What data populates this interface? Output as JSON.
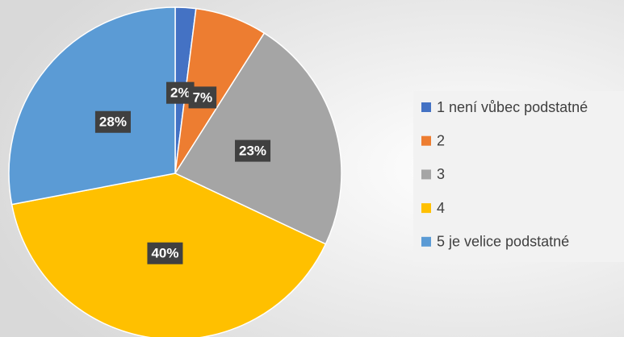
{
  "chart_data": {
    "type": "pie",
    "categories": [
      "1 není vůbec podstatné",
      "2",
      "3",
      "4",
      "5 je velice podstatné"
    ],
    "values": [
      2,
      7,
      23,
      40,
      28
    ],
    "value_labels": [
      "2%",
      "7%",
      "23%",
      "40%",
      "28%"
    ],
    "colors": [
      "#4472c4",
      "#ed7d31",
      "#a5a5a5",
      "#ffc000",
      "#5b9bd5"
    ],
    "legend": "right"
  }
}
